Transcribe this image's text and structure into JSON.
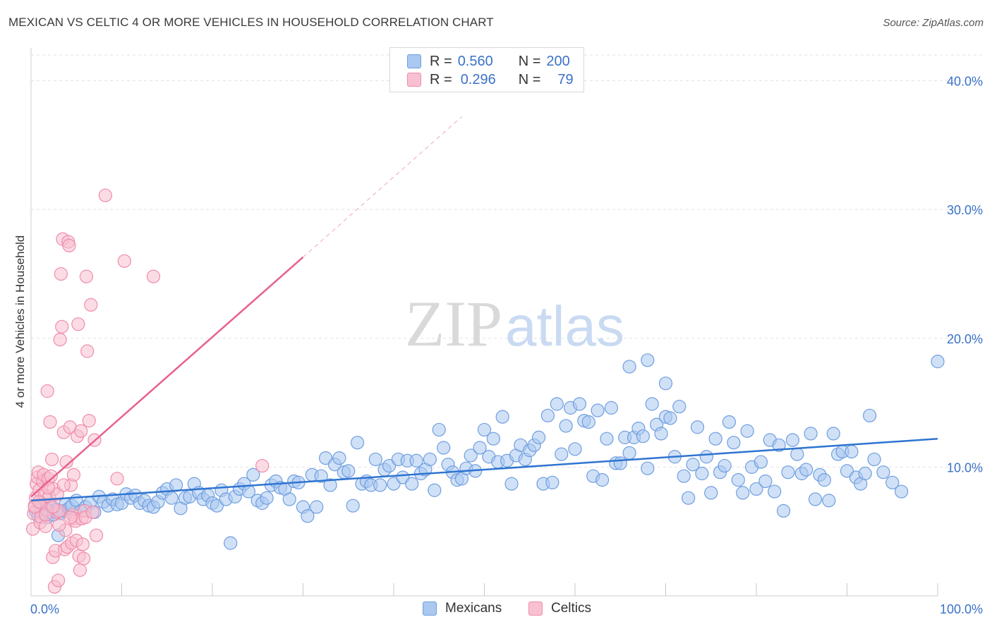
{
  "title": "MEXICAN VS CELTIC 4 OR MORE VEHICLES IN HOUSEHOLD CORRELATION CHART",
  "source": "Source: ZipAtlas.com",
  "watermark": {
    "zip": "ZIP",
    "atlas": "atlas"
  },
  "legend": {
    "r_label": "R =",
    "n_label": "N =",
    "rows": [
      {
        "r": "0.560",
        "n": "200"
      },
      {
        "r": "0.296",
        "n": "79"
      }
    ]
  },
  "colors": {
    "mexicans_fill": "#aac8f0",
    "mexicans_stroke": "#6f9ee0",
    "mexicans_line": "#2f74d0",
    "celtics_fill": "#f8c0d0",
    "celtics_stroke": "#f08cab",
    "celtics_line": "#e8608c",
    "tick_label": "#3b72c8",
    "grid": "#e2e2e2"
  },
  "chart_data": {
    "type": "scatter",
    "title": "MEXICAN VS CELTIC 4 OR MORE VEHICLES IN HOUSEHOLD CORRELATION CHART",
    "xlabel": "",
    "ylabel": "4 or more Vehicles in Household",
    "xlim": [
      0,
      100
    ],
    "ylim": [
      0,
      42
    ],
    "x_tick_labels": [
      "0.0%",
      "100.0%"
    ],
    "y_ticks": [
      10,
      20,
      30,
      40
    ],
    "y_tick_labels": [
      "10.0%",
      "20.0%",
      "30.0%",
      "40.0%"
    ],
    "grid": true,
    "legend_position": "top-center",
    "series": [
      {
        "name": "Mexicans",
        "r": 0.56,
        "n": 200,
        "trend": {
          "x": [
            0,
            100
          ],
          "y": [
            7.4,
            12.2
          ],
          "dashed_extension": false
        },
        "points": [
          [
            0.5,
            6.6
          ],
          [
            0.8,
            6.2
          ],
          [
            1.0,
            7.0
          ],
          [
            1.2,
            6.4
          ],
          [
            1.5,
            6.8
          ],
          [
            1.8,
            6.1
          ],
          [
            2.0,
            6.5
          ],
          [
            2.2,
            6.9
          ],
          [
            2.5,
            6.3
          ],
          [
            2.8,
            6.7
          ],
          [
            3.0,
            4.7
          ],
          [
            3.2,
            6.4
          ],
          [
            3.5,
            6.6
          ],
          [
            3.8,
            7.1
          ],
          [
            4.2,
            6.8
          ],
          [
            4.5,
            7.0
          ],
          [
            5.0,
            7.4
          ],
          [
            5.5,
            6.6
          ],
          [
            6.0,
            6.9
          ],
          [
            6.5,
            7.2
          ],
          [
            7.0,
            6.5
          ],
          [
            7.5,
            7.7
          ],
          [
            8.0,
            7.3
          ],
          [
            8.5,
            7.0
          ],
          [
            9.0,
            7.5
          ],
          [
            9.5,
            7.1
          ],
          [
            10.0,
            7.2
          ],
          [
            10.5,
            7.9
          ],
          [
            11.0,
            7.6
          ],
          [
            11.5,
            7.8
          ],
          [
            12.0,
            7.2
          ],
          [
            12.5,
            7.4
          ],
          [
            13.0,
            7.0
          ],
          [
            13.5,
            6.9
          ],
          [
            14.0,
            7.3
          ],
          [
            14.5,
            8.0
          ],
          [
            15.0,
            8.3
          ],
          [
            15.5,
            7.6
          ],
          [
            16.0,
            8.6
          ],
          [
            16.5,
            6.8
          ],
          [
            17.0,
            7.6
          ],
          [
            17.5,
            7.7
          ],
          [
            18.0,
            8.7
          ],
          [
            18.5,
            8.0
          ],
          [
            19.0,
            7.5
          ],
          [
            19.5,
            7.8
          ],
          [
            20.0,
            7.2
          ],
          [
            20.5,
            7.0
          ],
          [
            21.0,
            8.2
          ],
          [
            21.5,
            7.5
          ],
          [
            22.0,
            4.1
          ],
          [
            22.5,
            7.7
          ],
          [
            23.0,
            8.3
          ],
          [
            23.5,
            8.7
          ],
          [
            24.0,
            8.1
          ],
          [
            24.5,
            9.4
          ],
          [
            25.0,
            7.4
          ],
          [
            25.5,
            7.2
          ],
          [
            26.0,
            7.6
          ],
          [
            26.5,
            8.6
          ],
          [
            27.0,
            8.9
          ],
          [
            27.5,
            8.4
          ],
          [
            28.0,
            8.3
          ],
          [
            28.5,
            7.5
          ],
          [
            29.0,
            8.9
          ],
          [
            29.5,
            8.8
          ],
          [
            30.0,
            6.9
          ],
          [
            30.5,
            6.2
          ],
          [
            31.0,
            9.4
          ],
          [
            31.5,
            6.9
          ],
          [
            32.0,
            9.3
          ],
          [
            32.5,
            10.7
          ],
          [
            33.0,
            8.6
          ],
          [
            33.5,
            10.2
          ],
          [
            34.0,
            10.7
          ],
          [
            34.5,
            9.6
          ],
          [
            35.0,
            9.7
          ],
          [
            35.5,
            7.0
          ],
          [
            36.0,
            11.9
          ],
          [
            36.5,
            8.7
          ],
          [
            37.0,
            8.9
          ],
          [
            37.5,
            8.6
          ],
          [
            38.0,
            10.6
          ],
          [
            38.5,
            8.6
          ],
          [
            39.0,
            9.8
          ],
          [
            39.5,
            10.1
          ],
          [
            40.0,
            8.7
          ],
          [
            40.5,
            10.6
          ],
          [
            41.0,
            9.2
          ],
          [
            41.5,
            10.5
          ],
          [
            42.0,
            8.7
          ],
          [
            42.5,
            10.5
          ],
          [
            43.0,
            9.5
          ],
          [
            43.5,
            9.8
          ],
          [
            44.0,
            10.6
          ],
          [
            44.5,
            8.2
          ],
          [
            45.0,
            12.9
          ],
          [
            45.5,
            11.5
          ],
          [
            46.0,
            10.2
          ],
          [
            46.5,
            9.6
          ],
          [
            47.0,
            9.0
          ],
          [
            47.5,
            9.1
          ],
          [
            48.0,
            9.9
          ],
          [
            48.5,
            10.9
          ],
          [
            49.0,
            9.7
          ],
          [
            49.5,
            11.5
          ],
          [
            50.0,
            12.9
          ],
          [
            50.5,
            10.8
          ],
          [
            51.0,
            12.2
          ],
          [
            51.5,
            10.4
          ],
          [
            52.0,
            13.9
          ],
          [
            52.5,
            10.5
          ],
          [
            53.0,
            8.7
          ],
          [
            53.5,
            10.9
          ],
          [
            54.0,
            11.7
          ],
          [
            54.5,
            10.6
          ],
          [
            55.0,
            11.3
          ],
          [
            55.5,
            11.7
          ],
          [
            56.0,
            12.3
          ],
          [
            56.5,
            8.7
          ],
          [
            57.0,
            14.0
          ],
          [
            57.5,
            8.8
          ],
          [
            58.0,
            14.9
          ],
          [
            58.5,
            11.0
          ],
          [
            59.0,
            13.2
          ],
          [
            59.5,
            14.6
          ],
          [
            60.0,
            11.4
          ],
          [
            60.5,
            14.9
          ],
          [
            61.0,
            13.6
          ],
          [
            61.5,
            13.5
          ],
          [
            62.0,
            9.3
          ],
          [
            62.5,
            14.4
          ],
          [
            63.0,
            9.0
          ],
          [
            63.5,
            12.2
          ],
          [
            64.0,
            14.6
          ],
          [
            64.5,
            10.3
          ],
          [
            65.0,
            10.3
          ],
          [
            65.5,
            12.3
          ],
          [
            66.0,
            11.1
          ],
          [
            66.5,
            12.3
          ],
          [
            67.0,
            13.0
          ],
          [
            67.5,
            12.4
          ],
          [
            68.0,
            9.9
          ],
          [
            68.5,
            14.9
          ],
          [
            69.0,
            13.3
          ],
          [
            69.5,
            12.6
          ],
          [
            70.0,
            13.9
          ],
          [
            70.5,
            13.8
          ],
          [
            71.0,
            10.8
          ],
          [
            71.5,
            14.7
          ],
          [
            66.0,
            17.8
          ],
          [
            68.0,
            18.3
          ],
          [
            70.0,
            16.5
          ],
          [
            72.0,
            9.3
          ],
          [
            72.5,
            7.6
          ],
          [
            73.0,
            10.2
          ],
          [
            73.5,
            13.1
          ],
          [
            74.0,
            9.5
          ],
          [
            74.5,
            10.8
          ],
          [
            75.0,
            8.0
          ],
          [
            75.5,
            12.2
          ],
          [
            76.0,
            9.6
          ],
          [
            76.5,
            10.1
          ],
          [
            77.0,
            13.5
          ],
          [
            77.5,
            11.9
          ],
          [
            78.0,
            9.0
          ],
          [
            78.5,
            8.0
          ],
          [
            79.0,
            12.8
          ],
          [
            79.5,
            10.0
          ],
          [
            80.0,
            8.3
          ],
          [
            80.5,
            10.4
          ],
          [
            81.0,
            8.9
          ],
          [
            81.5,
            12.1
          ],
          [
            82.0,
            8.1
          ],
          [
            82.5,
            11.7
          ],
          [
            83.0,
            6.6
          ],
          [
            83.5,
            9.6
          ],
          [
            84.0,
            12.1
          ],
          [
            84.5,
            11.0
          ],
          [
            85.0,
            9.5
          ],
          [
            85.5,
            9.8
          ],
          [
            86.0,
            12.6
          ],
          [
            86.5,
            7.5
          ],
          [
            87.0,
            9.4
          ],
          [
            87.5,
            9.0
          ],
          [
            88.0,
            7.4
          ],
          [
            88.5,
            12.6
          ],
          [
            89.0,
            11.0
          ],
          [
            89.5,
            11.2
          ],
          [
            90.0,
            9.7
          ],
          [
            90.5,
            11.2
          ],
          [
            91.0,
            9.2
          ],
          [
            91.5,
            8.7
          ],
          [
            92.0,
            9.5
          ],
          [
            92.5,
            14.0
          ],
          [
            93.0,
            10.6
          ],
          [
            94.0,
            9.6
          ],
          [
            95.0,
            8.8
          ],
          [
            96.0,
            8.1
          ],
          [
            100.0,
            18.2
          ]
        ]
      },
      {
        "name": "Celtics",
        "r": 0.296,
        "n": 79,
        "trend": {
          "x": [
            0,
            30
          ],
          "y": [
            7.7,
            26.3
          ],
          "dashed_extension_to": [
            47.5,
            37.2
          ]
        },
        "points": [
          [
            0.2,
            5.2
          ],
          [
            0.3,
            6.4
          ],
          [
            0.4,
            7.0
          ],
          [
            0.5,
            7.6
          ],
          [
            0.6,
            8.7
          ],
          [
            0.7,
            9.2
          ],
          [
            0.8,
            9.6
          ],
          [
            0.9,
            8.2
          ],
          [
            1.0,
            5.7
          ],
          [
            1.1,
            6.1
          ],
          [
            1.2,
            7.2
          ],
          [
            1.3,
            8.9
          ],
          [
            1.4,
            9.4
          ],
          [
            1.5,
            7.8
          ],
          [
            1.6,
            5.4
          ],
          [
            1.7,
            6.7
          ],
          [
            1.8,
            15.9
          ],
          [
            1.9,
            9.1
          ],
          [
            2.0,
            7.7
          ],
          [
            2.1,
            13.5
          ],
          [
            2.2,
            9.3
          ],
          [
            2.3,
            10.6
          ],
          [
            2.4,
            3.0
          ],
          [
            2.5,
            8.3
          ],
          [
            2.6,
            0.7
          ],
          [
            2.7,
            3.5
          ],
          [
            2.8,
            6.5
          ],
          [
            2.9,
            7.9
          ],
          [
            3.0,
            1.2
          ],
          [
            3.1,
            6.6
          ],
          [
            3.2,
            19.9
          ],
          [
            3.3,
            25.0
          ],
          [
            3.4,
            20.9
          ],
          [
            3.5,
            27.7
          ],
          [
            3.6,
            12.7
          ],
          [
            3.7,
            3.6
          ],
          [
            3.8,
            5.1
          ],
          [
            3.9,
            10.4
          ],
          [
            4.0,
            3.8
          ],
          [
            4.1,
            27.5
          ],
          [
            4.2,
            27.2
          ],
          [
            4.3,
            13.1
          ],
          [
            4.4,
            8.6
          ],
          [
            4.5,
            4.1
          ],
          [
            4.6,
            6.3
          ],
          [
            4.7,
            9.4
          ],
          [
            4.8,
            6.0
          ],
          [
            4.9,
            5.8
          ],
          [
            5.0,
            4.3
          ],
          [
            5.1,
            12.4
          ],
          [
            5.2,
            21.1
          ],
          [
            5.3,
            3.1
          ],
          [
            5.4,
            2.0
          ],
          [
            5.5,
            12.8
          ],
          [
            5.6,
            6.0
          ],
          [
            5.7,
            4.0
          ],
          [
            5.8,
            2.9
          ],
          [
            5.9,
            6.6
          ],
          [
            6.0,
            6.1
          ],
          [
            6.1,
            24.8
          ],
          [
            6.2,
            19.0
          ],
          [
            6.4,
            13.6
          ],
          [
            6.6,
            22.6
          ],
          [
            6.8,
            6.5
          ],
          [
            7.0,
            12.1
          ],
          [
            7.2,
            4.7
          ],
          [
            8.2,
            31.1
          ],
          [
            9.5,
            9.1
          ],
          [
            10.3,
            26.0
          ],
          [
            13.5,
            24.8
          ],
          [
            0.4,
            6.9
          ],
          [
            0.9,
            7.3
          ],
          [
            1.6,
            6.3
          ],
          [
            1.9,
            8.4
          ],
          [
            2.4,
            6.9
          ],
          [
            3.1,
            5.5
          ],
          [
            3.6,
            8.6
          ],
          [
            4.4,
            6.1
          ],
          [
            25.5,
            10.1
          ]
        ]
      }
    ]
  }
}
